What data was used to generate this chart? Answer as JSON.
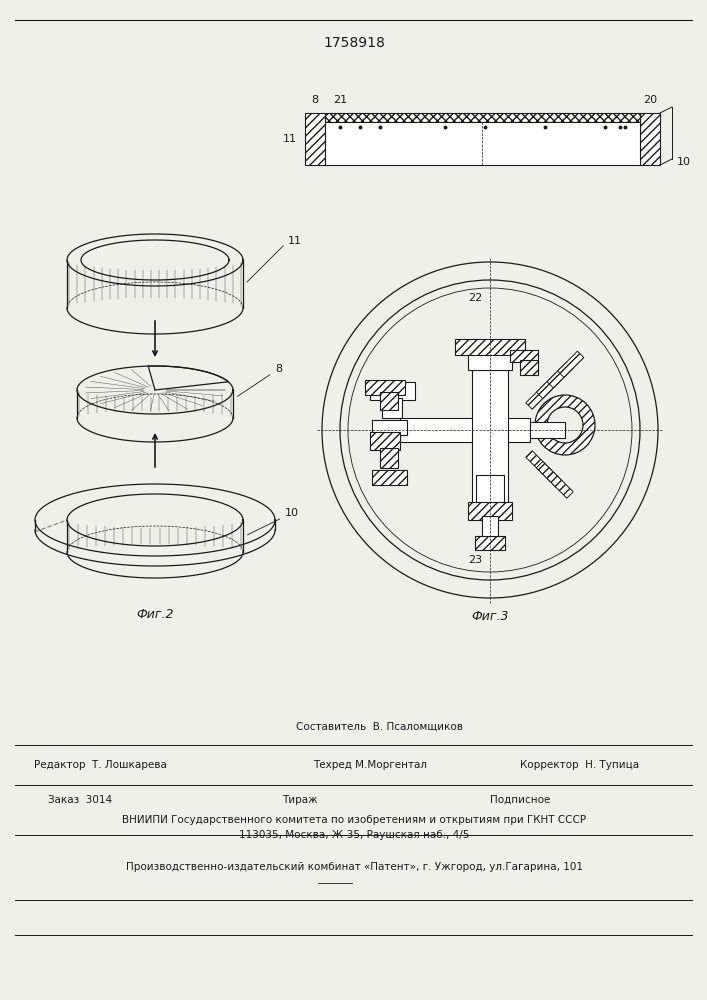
{
  "title": "1758918",
  "fig2_label": "Фиг.2",
  "fig3_label": "Фиг.3",
  "footer_sostavitel": "Составитель  В. Псаломщиков",
  "footer_tehred": "Техред М.Моргентал",
  "footer_redaktor": "Редактор  Т. Лошкарева",
  "footer_korrektor": "Корректор  Н. Тупица",
  "footer_zakaz": "Заказ  3014",
  "footer_tirazh": "Тираж",
  "footer_podpisnoe": "Подписное",
  "footer_vniipи": "ВНИИПИ Государственного комитета по изобретениям и открытиям при ГКНТ СССР",
  "footer_addr": "113035, Москва, Ж-35, Раушская наб., 4/5",
  "footer_prod": "Производственно-издательский комбинат «Патент», г. Ужгород, ул.Гагарина, 101",
  "bg_color": "#f0f0eb",
  "line_color": "#1a1a1a"
}
